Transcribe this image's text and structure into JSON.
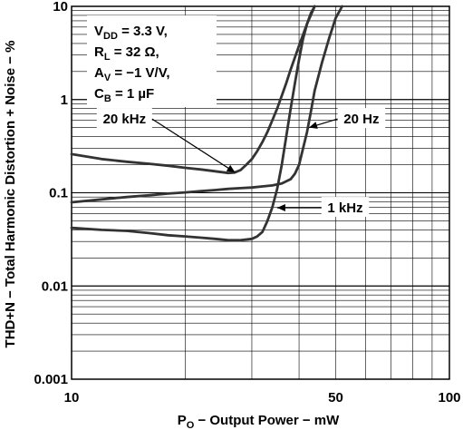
{
  "chart_data": {
    "type": "line",
    "title": "",
    "xlabel": "P",
    "xlabel_sub": "O",
    "xlabel_rest": " − Output Power − mW",
    "ylabel": "THD+N − Total Harmonic Distortion + Noise − %",
    "xscale": "log",
    "yscale": "log",
    "xlim": [
      10,
      100
    ],
    "ylim": [
      0.001,
      10
    ],
    "grid": true,
    "x_ticks": [
      {
        "value": 10,
        "label": "10"
      },
      {
        "value": 50,
        "label": "50"
      },
      {
        "value": 100,
        "label": "100"
      }
    ],
    "y_ticks": [
      {
        "value": 10,
        "label": "10"
      },
      {
        "value": 1,
        "label": "1"
      },
      {
        "value": 0.1,
        "label": "0.1"
      },
      {
        "value": 0.01,
        "label": "0.01"
      },
      {
        "value": 0.001,
        "label": "0.001"
      }
    ],
    "conditions": [
      {
        "main": "V",
        "sub": "DD",
        "rest": " = 3.3 V,"
      },
      {
        "main": "R",
        "sub": "L",
        "rest": " = 32 Ω,"
      },
      {
        "main": "A",
        "sub": "V",
        "rest": " = −1 V/V,"
      },
      {
        "main": "C",
        "sub": "B",
        "rest": " = 1 µF"
      }
    ],
    "series": [
      {
        "name": "20 kHz",
        "label_at": [
          13.8,
          0.62
        ],
        "arrow_to": [
          27.1,
          0.165
        ],
        "x": [
          10,
          12,
          14,
          16,
          18,
          20,
          22,
          24,
          26,
          27,
          28,
          29,
          30,
          31,
          32,
          33,
          34,
          35,
          36,
          37,
          38,
          40,
          42,
          44
        ],
        "y": [
          0.26,
          0.23,
          0.215,
          0.205,
          0.195,
          0.185,
          0.178,
          0.17,
          0.163,
          0.165,
          0.175,
          0.2,
          0.23,
          0.28,
          0.35,
          0.45,
          0.6,
          0.8,
          1.1,
          1.5,
          2.1,
          3.8,
          6.5,
          10
        ]
      },
      {
        "name": "20 Hz",
        "label_at": [
          58.5,
          0.62
        ],
        "arrow_to": [
          42.5,
          0.5
        ],
        "x": [
          10,
          12,
          14,
          16,
          18,
          20,
          22,
          24,
          26,
          28,
          30,
          32,
          34,
          36,
          38,
          39,
          40,
          41,
          42,
          43,
          44,
          46,
          48,
          50,
          52
        ],
        "y": [
          0.079,
          0.085,
          0.09,
          0.094,
          0.098,
          0.101,
          0.104,
          0.107,
          0.11,
          0.112,
          0.114,
          0.117,
          0.12,
          0.126,
          0.14,
          0.16,
          0.2,
          0.3,
          0.45,
          0.75,
          1.25,
          2.5,
          4.5,
          7.5,
          10
        ]
      },
      {
        "name": "1 kHz",
        "label_at": [
          53,
          0.069
        ],
        "arrow_to": [
          35,
          0.069
        ],
        "x": [
          10,
          12,
          14,
          16,
          18,
          20,
          22,
          24,
          26,
          28,
          30,
          31,
          32,
          33,
          34,
          35,
          36,
          37,
          38,
          39,
          40,
          41,
          42,
          43,
          44
        ],
        "y": [
          0.042,
          0.04,
          0.039,
          0.037,
          0.035,
          0.034,
          0.033,
          0.032,
          0.031,
          0.031,
          0.032,
          0.034,
          0.038,
          0.05,
          0.07,
          0.11,
          0.2,
          0.4,
          0.8,
          1.5,
          2.7,
          4.5,
          6.5,
          8.5,
          10
        ]
      }
    ]
  }
}
